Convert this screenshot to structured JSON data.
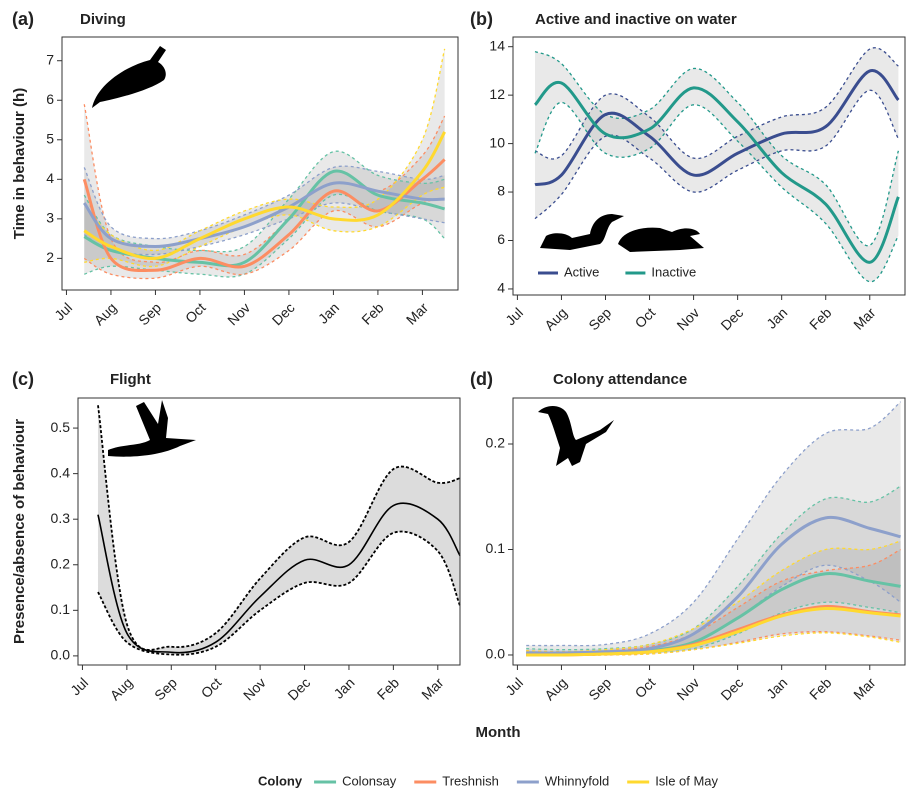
{
  "figure": {
    "x_label": "Month",
    "legend_title": "Colony"
  },
  "chart_data": [
    {
      "type": "line",
      "label": "(a)",
      "title": "Diving",
      "y_label": "Time in behaviour (h)",
      "x": [
        0.4,
        1,
        2,
        3,
        4,
        5,
        6,
        7,
        8,
        8.5
      ],
      "xlim": [
        -0.1,
        8.8
      ],
      "xticks": [
        {
          "value": 0,
          "label": "Jul"
        },
        {
          "value": 1,
          "label": "Aug"
        },
        {
          "value": 2,
          "label": "Sep"
        },
        {
          "value": 3,
          "label": "Oct"
        },
        {
          "value": 4,
          "label": "Nov"
        },
        {
          "value": 5,
          "label": "Dec"
        },
        {
          "value": 6,
          "label": "Jan"
        },
        {
          "value": 7,
          "label": "Feb"
        },
        {
          "value": 8,
          "label": "Mar"
        }
      ],
      "ylim": [
        1.2,
        7.6
      ],
      "yticks": [
        2,
        3,
        4,
        5,
        6,
        7
      ],
      "series": [
        {
          "name": "Colonsay",
          "color": "#66c2a5",
          "values": [
            2.55,
            2.2,
            2.0,
            1.9,
            1.9,
            3.0,
            4.2,
            3.6,
            3.4,
            3.25
          ],
          "lower": [
            1.6,
            1.8,
            1.7,
            1.6,
            1.6,
            2.5,
            3.6,
            3.2,
            3.0,
            2.5
          ],
          "upper": [
            3.6,
            2.6,
            2.3,
            2.2,
            2.3,
            3.5,
            4.7,
            4.1,
            3.9,
            4.0
          ]
        },
        {
          "name": "Treshnish",
          "color": "#fc8d62",
          "values": [
            4.0,
            2.0,
            1.7,
            2.0,
            1.8,
            2.6,
            3.7,
            3.2,
            4.0,
            4.5
          ],
          "lower": [
            2.0,
            1.6,
            1.5,
            1.8,
            1.6,
            2.2,
            3.2,
            2.8,
            3.4,
            3.5
          ],
          "upper": [
            5.9,
            2.5,
            1.9,
            2.2,
            2.1,
            3.0,
            4.2,
            3.7,
            4.6,
            5.6
          ]
        },
        {
          "name": "Whinnyfold",
          "color": "#8da0cb",
          "values": [
            3.4,
            2.5,
            2.3,
            2.5,
            2.8,
            3.3,
            3.9,
            3.7,
            3.5,
            3.5
          ],
          "lower": [
            2.6,
            2.2,
            2.1,
            2.3,
            2.6,
            3.0,
            3.4,
            3.2,
            3.0,
            2.9
          ],
          "upper": [
            4.3,
            2.8,
            2.5,
            2.7,
            3.1,
            3.6,
            4.3,
            4.2,
            4.0,
            4.1
          ]
        },
        {
          "name": "Isle of May",
          "color": "#ffd92f",
          "values": [
            2.7,
            2.3,
            2.0,
            2.5,
            3.0,
            3.3,
            3.0,
            3.1,
            4.2,
            5.2
          ],
          "lower": [
            1.9,
            2.0,
            1.8,
            2.3,
            2.8,
            3.1,
            2.7,
            2.8,
            3.6,
            3.8
          ],
          "upper": [
            3.4,
            2.6,
            2.2,
            2.7,
            3.2,
            3.5,
            3.3,
            3.5,
            5.0,
            7.3
          ]
        }
      ]
    },
    {
      "type": "line",
      "label": "(b)",
      "title": "Active and inactive on water",
      "x": [
        0.4,
        1,
        2,
        3,
        4,
        5,
        6,
        7,
        8,
        8.65
      ],
      "xlim": [
        -0.1,
        8.8
      ],
      "xticks": [
        {
          "value": 0,
          "label": "Jul"
        },
        {
          "value": 1,
          "label": "Aug"
        },
        {
          "value": 2,
          "label": "Sep"
        },
        {
          "value": 3,
          "label": "Oct"
        },
        {
          "value": 4,
          "label": "Nov"
        },
        {
          "value": 5,
          "label": "Dec"
        },
        {
          "value": 6,
          "label": "Jan"
        },
        {
          "value": 7,
          "label": "Feb"
        },
        {
          "value": 8,
          "label": "Mar"
        }
      ],
      "ylim": [
        3.75,
        14.4
      ],
      "yticks": [
        4,
        6,
        8,
        10,
        12,
        14
      ],
      "legend": "bottom-left",
      "series": [
        {
          "name": "Active",
          "color": "#3a4d8f",
          "values": [
            8.3,
            8.7,
            11.2,
            10.3,
            8.7,
            9.6,
            10.4,
            10.7,
            13.0,
            11.8
          ],
          "lower": [
            6.9,
            7.9,
            10.3,
            9.4,
            8.0,
            8.9,
            9.7,
            9.9,
            12.2,
            10.2
          ],
          "upper": [
            9.7,
            9.5,
            12.0,
            11.1,
            9.4,
            10.3,
            11.1,
            11.5,
            13.9,
            13.2
          ]
        },
        {
          "name": "Inactive",
          "color": "#22998a",
          "values": [
            11.6,
            12.5,
            10.4,
            10.6,
            12.3,
            10.9,
            8.8,
            7.5,
            5.1,
            7.8
          ],
          "lower": [
            9.6,
            11.7,
            9.6,
            9.8,
            11.6,
            10.1,
            8.2,
            6.7,
            4.3,
            6.2
          ],
          "upper": [
            13.8,
            13.3,
            11.2,
            11.4,
            13.1,
            11.7,
            9.5,
            8.3,
            5.8,
            9.7
          ]
        }
      ]
    },
    {
      "type": "line",
      "label": "(c)",
      "title": "Flight",
      "y_label": "Presence/absence of behaviour",
      "x": [
        0.35,
        1,
        2,
        3,
        4,
        5,
        6,
        7,
        8,
        8.5
      ],
      "xlim": [
        -0.1,
        8.5
      ],
      "xticks": [
        {
          "value": 0,
          "label": "Jul"
        },
        {
          "value": 1,
          "label": "Aug"
        },
        {
          "value": 2,
          "label": "Sep"
        },
        {
          "value": 3,
          "label": "Oct"
        },
        {
          "value": 4,
          "label": "Nov"
        },
        {
          "value": 5,
          "label": "Dec"
        },
        {
          "value": 6,
          "label": "Jan"
        },
        {
          "value": 7,
          "label": "Feb"
        },
        {
          "value": 8,
          "label": "Mar"
        }
      ],
      "ylim": [
        -0.02,
        0.566
      ],
      "yticks": [
        {
          "value": 0,
          "label": "0.0"
        },
        0.1,
        0.2,
        0.3,
        0.4,
        0.5
      ],
      "color": "#000000",
      "values": [
        0.31,
        0.05,
        0.008,
        0.03,
        0.13,
        0.21,
        0.2,
        0.33,
        0.3,
        0.22
      ],
      "lower": [
        0.14,
        0.03,
        0.003,
        0.02,
        0.1,
        0.16,
        0.16,
        0.27,
        0.23,
        0.11
      ],
      "upper": [
        0.55,
        0.07,
        0.02,
        0.05,
        0.17,
        0.26,
        0.25,
        0.41,
        0.38,
        0.39
      ]
    },
    {
      "type": "line",
      "label": "(d)",
      "title": "Colony attendance",
      "x": [
        0.2,
        1,
        2,
        3,
        4,
        5,
        6,
        7,
        8,
        8.7
      ],
      "xlim": [
        -0.1,
        8.8
      ],
      "xticks": [
        {
          "value": 0,
          "label": "Jul"
        },
        {
          "value": 1,
          "label": "Aug"
        },
        {
          "value": 2,
          "label": "Sep"
        },
        {
          "value": 3,
          "label": "Oct"
        },
        {
          "value": 4,
          "label": "Nov"
        },
        {
          "value": 5,
          "label": "Dec"
        },
        {
          "value": 6,
          "label": "Jan"
        },
        {
          "value": 7,
          "label": "Feb"
        },
        {
          "value": 8,
          "label": "Mar"
        }
      ],
      "ylim": [
        -0.0095,
        0.2436
      ],
      "yticks": [
        {
          "value": 0,
          "label": "0.0"
        },
        0.1,
        0.2
      ],
      "series": [
        {
          "color": "#66c2a5",
          "values": [
            0.001,
            0.001,
            0.002,
            0.004,
            0.012,
            0.035,
            0.062,
            0.077,
            0.07,
            0.065
          ],
          "lower": [
            0,
            0,
            0.001,
            0.002,
            0.006,
            0.02,
            0.04,
            0.05,
            0.045,
            0.04
          ],
          "upper": [
            0.006,
            0.005,
            0.006,
            0.01,
            0.025,
            0.065,
            0.115,
            0.148,
            0.145,
            0.16
          ]
        },
        {
          "color": "#fc8d62",
          "values": [
            0,
            0,
            0.001,
            0.003,
            0.01,
            0.024,
            0.038,
            0.046,
            0.041,
            0.038
          ],
          "lower": [
            0,
            0,
            0,
            0.001,
            0.005,
            0.012,
            0.02,
            0.022,
            0.018,
            0.014
          ],
          "upper": [
            0.004,
            0.003,
            0.004,
            0.008,
            0.02,
            0.045,
            0.07,
            0.08,
            0.085,
            0.1
          ]
        },
        {
          "color": "#8da0cb",
          "values": [
            0.002,
            0.002,
            0.003,
            0.006,
            0.02,
            0.055,
            0.105,
            0.13,
            0.12,
            0.112
          ],
          "lower": [
            0.001,
            0.001,
            0.002,
            0.004,
            0.012,
            0.035,
            0.065,
            0.085,
            0.07,
            0.05
          ],
          "upper": [
            0.009,
            0.009,
            0.01,
            0.02,
            0.05,
            0.11,
            0.17,
            0.21,
            0.215,
            0.24
          ]
        },
        {
          "color": "#ffd92f",
          "values": [
            0,
            0,
            0.001,
            0.003,
            0.009,
            0.022,
            0.037,
            0.044,
            0.04,
            0.037
          ],
          "lower": [
            0,
            0,
            0,
            0.001,
            0.005,
            0.011,
            0.018,
            0.021,
            0.017,
            0.012
          ],
          "upper": [
            0.004,
            0.003,
            0.005,
            0.01,
            0.025,
            0.05,
            0.08,
            0.1,
            0.1,
            0.108
          ]
        }
      ]
    }
  ]
}
